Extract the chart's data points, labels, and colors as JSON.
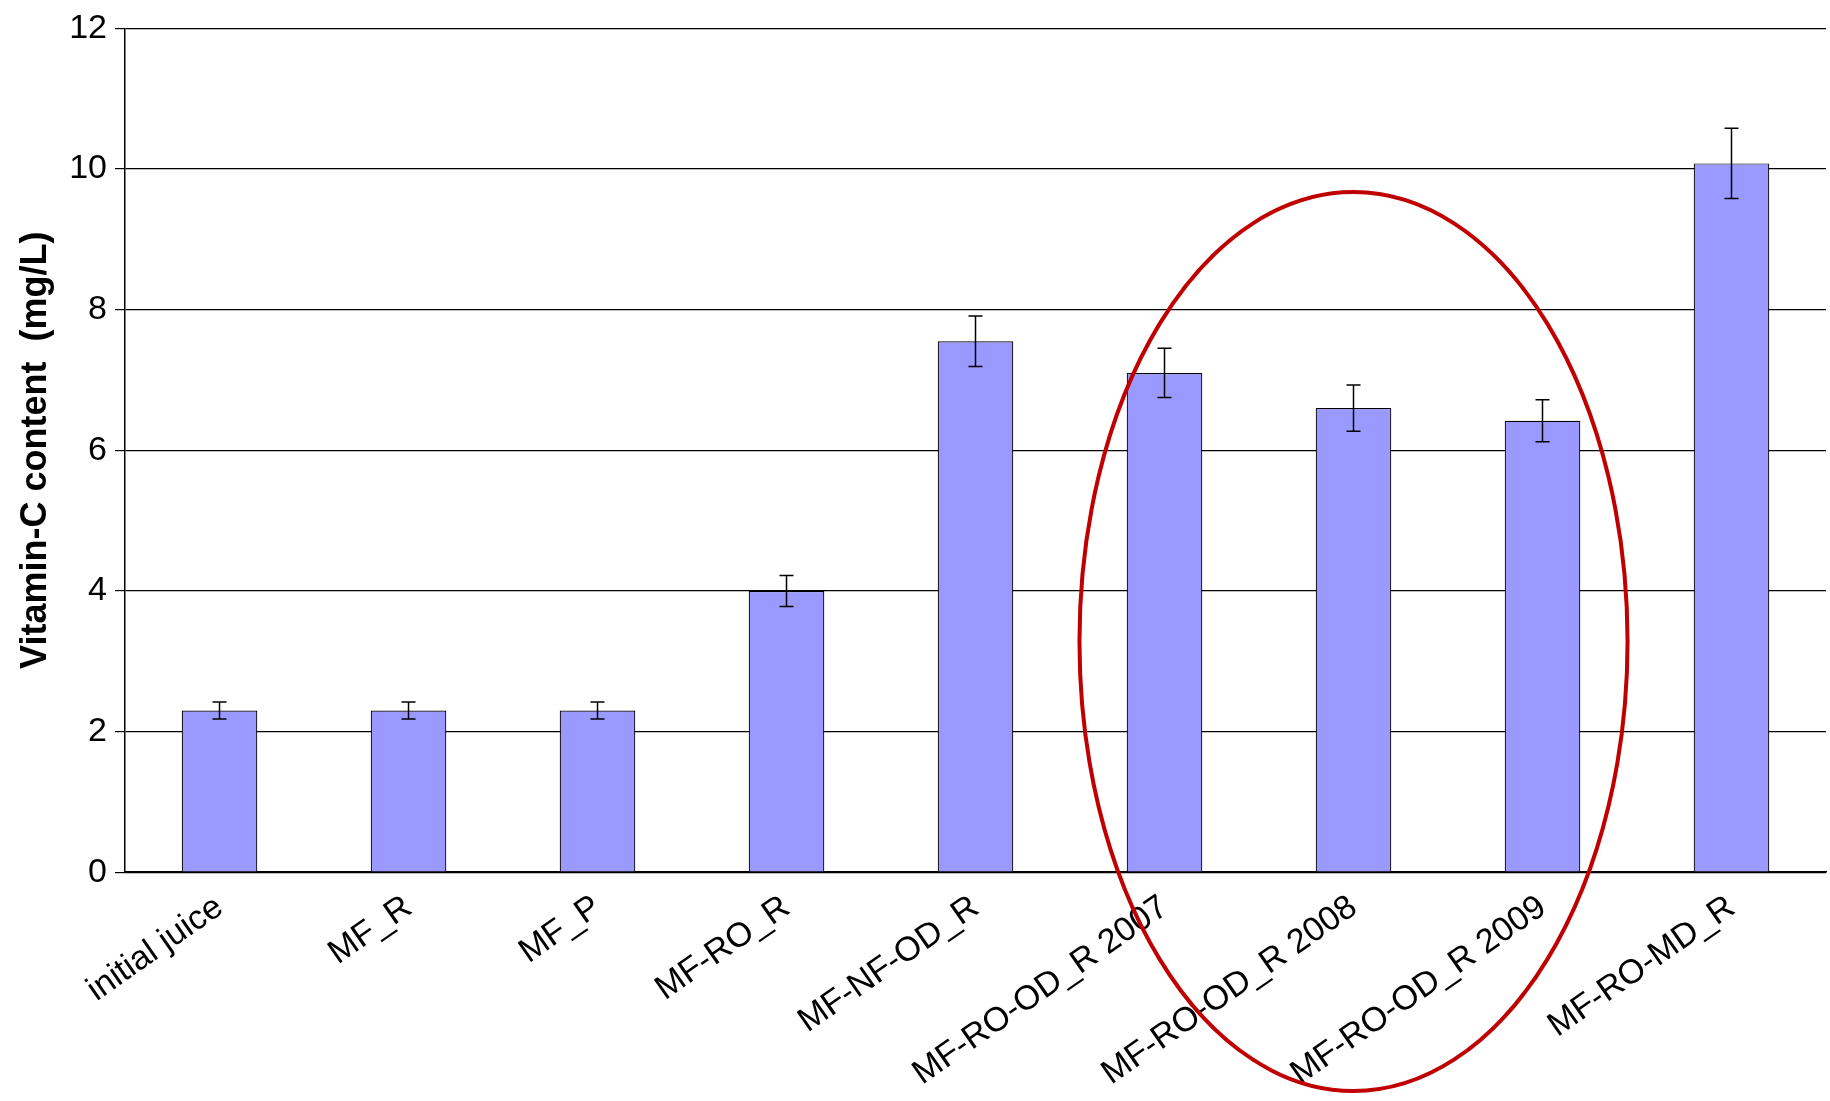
{
  "chart_data": {
    "type": "bar",
    "ylabel": "Vitamin-C content  (mg/L)",
    "categories": [
      "initial juice",
      "MF_R",
      "MF_P",
      "MF-RO_R",
      "MF-NF-OD_R",
      "MF-RO-OD_R 2007",
      "MF-RO-OD_R 2008",
      "MF-RO-OD_R 2009",
      "MF-RO-MD_R"
    ],
    "values": [
      2.3,
      2.3,
      2.3,
      4.0,
      7.55,
      7.1,
      6.6,
      6.42,
      10.08
    ],
    "errors": [
      0.12,
      0.12,
      0.12,
      0.22,
      0.36,
      0.35,
      0.33,
      0.3,
      0.5
    ],
    "color": "#9999ff",
    "ylim": [
      0,
      12
    ],
    "yticks": [
      0,
      2,
      4,
      6,
      8,
      10,
      12
    ],
    "grid": "y",
    "legend": false
  }
}
